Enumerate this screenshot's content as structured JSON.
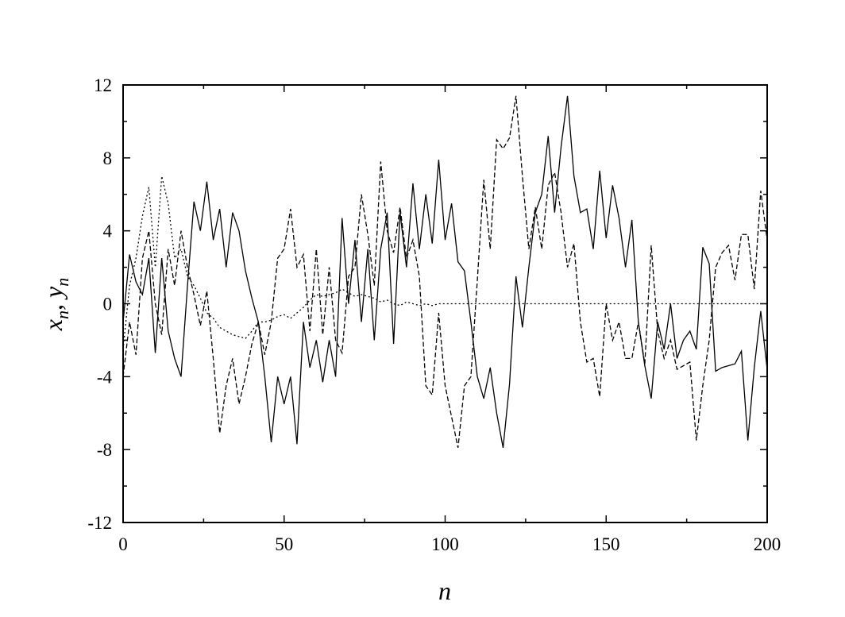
{
  "chart_data": {
    "type": "line",
    "xlabel": "n",
    "ylabel": [
      "x",
      "n",
      ", ",
      "y",
      "n"
    ],
    "xlim": [
      0,
      200
    ],
    "ylim": [
      -12,
      12
    ],
    "xticks": [
      0,
      50,
      100,
      150,
      200
    ],
    "yticks": [
      -12,
      -8,
      -4,
      0,
      4,
      8,
      12
    ],
    "xminor_ticks": [
      25,
      75,
      125,
      175
    ],
    "yminor_ticks": [
      -10,
      -6,
      -2,
      2,
      6,
      10
    ],
    "x": [
      0,
      2,
      4,
      6,
      8,
      10,
      12,
      14,
      16,
      18,
      20,
      22,
      24,
      26,
      28,
      30,
      32,
      34,
      36,
      38,
      40,
      42,
      44,
      46,
      48,
      50,
      52,
      54,
      56,
      58,
      60,
      62,
      64,
      66,
      68,
      70,
      72,
      74,
      76,
      78,
      80,
      82,
      84,
      86,
      88,
      90,
      92,
      94,
      96,
      98,
      100,
      102,
      104,
      106,
      108,
      110,
      112,
      114,
      116,
      118,
      120,
      122,
      124,
      126,
      128,
      130,
      132,
      134,
      136,
      138,
      140,
      142,
      144,
      146,
      148,
      150,
      152,
      154,
      156,
      158,
      160,
      162,
      164,
      166,
      168,
      170,
      172,
      174,
      176,
      178,
      180,
      182,
      184,
      186,
      188,
      190,
      192,
      194,
      196,
      198,
      200
    ],
    "series": [
      {
        "color": "#000000",
        "dash": "solid",
        "values": [
          -1,
          2.7,
          1.2,
          0.5,
          2.5,
          -2.7,
          2.5,
          -1.5,
          -3,
          -4,
          1,
          5.6,
          4,
          6.7,
          3.5,
          5.2,
          2,
          5,
          4,
          1.8,
          0.3,
          -1,
          -4,
          -7.6,
          -4,
          -5.5,
          -4,
          -7.7,
          -1,
          -3.5,
          -2,
          -4.3,
          -2,
          -4,
          4.7,
          0,
          3.5,
          -1,
          3,
          -2,
          3,
          5,
          -2.2,
          5,
          2,
          6.6,
          3,
          6,
          3.3,
          7.9,
          3.5,
          5.5,
          2.3,
          1.8,
          -1,
          -4,
          -5.2,
          -3.5,
          -6,
          -7.9,
          -4.4,
          1.5,
          -1.3,
          2,
          5,
          6,
          9.2,
          5,
          8.6,
          11.4,
          7,
          5,
          5.2,
          3,
          7.3,
          3.6,
          6.5,
          4.7,
          2,
          4.6,
          -1,
          -3.4,
          -5.2,
          -1,
          -2.5,
          0,
          -3,
          -2,
          -1.5,
          -2.5,
          3.1,
          2.2,
          -3.7,
          -3.5,
          -3.4,
          -3.3,
          -2.6,
          -7.5,
          -3.5,
          -0.4,
          -3.6
        ]
      },
      {
        "color": "#000000",
        "dash": "dashed",
        "values": [
          -4,
          -1,
          -2.8,
          2.5,
          4,
          0,
          -1.7,
          3,
          1,
          4,
          2,
          0.5,
          -1.2,
          0.7,
          -3,
          -7.1,
          -4.5,
          -3,
          -5.5,
          -4,
          -2.2,
          -1,
          -2.8,
          -1,
          2.5,
          3,
          5.2,
          2,
          2.7,
          -1.5,
          3,
          -1.7,
          2,
          -2,
          -2.7,
          1.5,
          2,
          6,
          3.8,
          1,
          7.8,
          4,
          2.8,
          5.3,
          2.5,
          3.5,
          1.5,
          -4.5,
          -5,
          -0.5,
          -4.5,
          -6.2,
          -7.9,
          -4.5,
          -4,
          1.3,
          6.8,
          3,
          9,
          8.5,
          9.1,
          11.4,
          7,
          3,
          5.3,
          3,
          6.5,
          7.2,
          5,
          2,
          3.3,
          -1,
          -3.2,
          -3,
          -5.1,
          0,
          -2,
          -1,
          -3,
          -3,
          -1,
          -3.3,
          3.2,
          -1.5,
          -3,
          -2,
          -3.6,
          -3.4,
          -3.2,
          -7.5,
          -4.5,
          -2,
          2,
          2.8,
          3.2,
          1.3,
          3.8,
          3.8,
          0.8,
          6.2,
          3.5
        ]
      },
      {
        "color": "#000000",
        "dash": "dotted",
        "values": [
          -2.5,
          1,
          2.5,
          4.8,
          6.4,
          2,
          7,
          5.5,
          2.5,
          3,
          1.5,
          1,
          0.3,
          -0.5,
          -0.8,
          -1.3,
          -1.5,
          -1.7,
          -1.8,
          -1.9,
          -1.5,
          -1,
          -1,
          -0.9,
          -0.7,
          -0.6,
          -0.8,
          -0.5,
          -0.2,
          0.2,
          0.5,
          0.4,
          0.5,
          0.6,
          0.8,
          0.6,
          0.4,
          0.5,
          0.4,
          0.3,
          0.1,
          0.2,
          0,
          -0.1,
          0.1,
          0,
          -0.1,
          0,
          -0.1,
          0,
          0,
          0,
          0,
          0,
          0,
          0,
          0,
          0,
          0,
          0,
          0,
          0,
          0,
          0,
          0,
          0,
          0,
          0,
          0,
          0,
          0,
          0,
          0,
          0,
          0,
          0,
          0,
          0,
          0,
          0,
          0,
          0,
          0,
          0,
          0,
          0,
          0,
          0,
          0,
          0,
          0,
          0,
          0,
          0,
          0,
          0,
          0,
          0,
          0,
          0,
          0
        ]
      }
    ]
  }
}
